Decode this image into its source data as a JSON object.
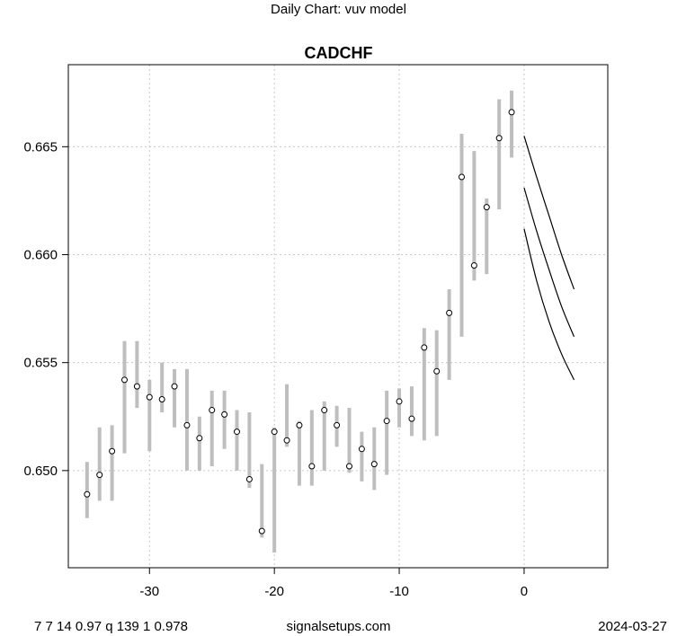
{
  "page": {
    "suptitle": "Daily Chart: vuv model",
    "footer_left": "7 7 14 0.97 q 139 1 0.978",
    "footer_center": "signalsetups.com",
    "footer_right": "2024-03-27"
  },
  "chart_data": {
    "type": "scatter",
    "title": "CADCHF",
    "xlabel": "",
    "ylabel": "",
    "xlim": [
      -36.5,
      6.7
    ],
    "ylim": [
      0.6455,
      0.6688
    ],
    "x_ticks": [
      -30,
      -20,
      -10,
      0
    ],
    "y_ticks": [
      0.65,
      0.655,
      0.66,
      0.665
    ],
    "y_tick_labels": [
      "0.650",
      "0.655",
      "0.660",
      "0.665"
    ],
    "grid": true,
    "colors": {
      "range_bar": "#bebebe",
      "point": "#000000",
      "forecast": "#000000",
      "grid": "#c8c8c8"
    },
    "series": [
      {
        "kind": "range_bars_with_close",
        "x": [
          -35,
          -34,
          -33,
          -32,
          -31,
          -30,
          -29,
          -28,
          -27,
          -26,
          -25,
          -24,
          -23,
          -22,
          -21,
          -20,
          -19,
          -18,
          -17,
          -16,
          -15,
          -14,
          -13,
          -12,
          -11,
          -10,
          -9,
          -8,
          -7,
          -6,
          -5,
          -4,
          -3,
          -2,
          -1
        ],
        "low": [
          0.6478,
          0.6486,
          0.6486,
          0.6508,
          0.6529,
          0.6509,
          0.6527,
          0.652,
          0.65,
          0.65,
          0.6502,
          0.651,
          0.65,
          0.6492,
          0.6469,
          0.6462,
          0.6511,
          0.6493,
          0.6493,
          0.65,
          0.6511,
          0.6499,
          0.6495,
          0.6491,
          0.6498,
          0.652,
          0.6516,
          0.6514,
          0.6516,
          0.6542,
          0.6562,
          0.6588,
          0.6591,
          0.6621,
          0.6645
        ],
        "high": [
          0.6504,
          0.652,
          0.6521,
          0.656,
          0.656,
          0.6542,
          0.655,
          0.6547,
          0.6547,
          0.6525,
          0.6537,
          0.6537,
          0.6528,
          0.6527,
          0.6503,
          0.652,
          0.654,
          0.6523,
          0.6528,
          0.6532,
          0.653,
          0.6529,
          0.6518,
          0.652,
          0.6537,
          0.6538,
          0.6539,
          0.6566,
          0.6565,
          0.6584,
          0.6656,
          0.6648,
          0.6626,
          0.6672,
          0.6676
        ],
        "close": [
          0.6489,
          0.6498,
          0.6509,
          0.6542,
          0.6539,
          0.6534,
          0.6533,
          0.6539,
          0.6521,
          0.6515,
          0.6528,
          0.6526,
          0.6518,
          0.6496,
          0.6472,
          0.6518,
          0.6514,
          0.6521,
          0.6502,
          0.6528,
          0.6521,
          0.6502,
          0.651,
          0.6503,
          0.6523,
          0.6532,
          0.6524,
          0.6557,
          0.6546,
          0.6573,
          0.6636,
          0.6595,
          0.6622,
          0.6654,
          0.6666
        ]
      },
      {
        "kind": "forecast_line",
        "x": [
          0,
          1,
          2,
          3,
          4
        ],
        "y": [
          0.6655,
          0.6636,
          0.6618,
          0.66,
          0.6584
        ]
      },
      {
        "kind": "forecast_line",
        "x": [
          0,
          1,
          2,
          3,
          4
        ],
        "y": [
          0.6631,
          0.6611,
          0.6593,
          0.6576,
          0.6562
        ]
      },
      {
        "kind": "forecast_line",
        "x": [
          0,
          1,
          2,
          3,
          4
        ],
        "y": [
          0.6612,
          0.6588,
          0.6569,
          0.6554,
          0.6542
        ]
      }
    ]
  }
}
